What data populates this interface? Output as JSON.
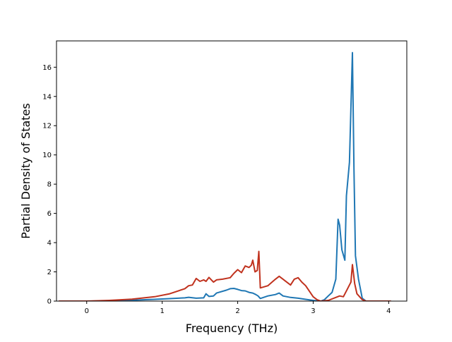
{
  "chart_data": {
    "type": "line",
    "title": "",
    "xlabel": "Frequency (THz)",
    "ylabel": "Partial Density of States",
    "xlim": [
      -0.4,
      4.24
    ],
    "ylim": [
      0,
      17.8
    ],
    "xticks": [
      0,
      1,
      2,
      3,
      4
    ],
    "yticks": [
      0,
      2,
      4,
      6,
      8,
      10,
      12,
      14,
      16
    ],
    "grid": false,
    "legend": "none",
    "series": [
      {
        "color": "#1f77b4",
        "points": [
          [
            -0.37,
            0
          ],
          [
            0.0,
            0.0
          ],
          [
            0.3,
            0.02
          ],
          [
            0.6,
            0.06
          ],
          [
            0.9,
            0.12
          ],
          [
            1.1,
            0.17
          ],
          [
            1.3,
            0.22
          ],
          [
            1.35,
            0.26
          ],
          [
            1.45,
            0.2
          ],
          [
            1.55,
            0.22
          ],
          [
            1.58,
            0.5
          ],
          [
            1.62,
            0.32
          ],
          [
            1.68,
            0.35
          ],
          [
            1.72,
            0.55
          ],
          [
            1.85,
            0.75
          ],
          [
            1.9,
            0.85
          ],
          [
            1.95,
            0.87
          ],
          [
            2.0,
            0.8
          ],
          [
            2.05,
            0.72
          ],
          [
            2.1,
            0.7
          ],
          [
            2.15,
            0.6
          ],
          [
            2.2,
            0.55
          ],
          [
            2.24,
            0.45
          ],
          [
            2.27,
            0.35
          ],
          [
            2.3,
            0.18
          ],
          [
            2.4,
            0.35
          ],
          [
            2.5,
            0.45
          ],
          [
            2.55,
            0.55
          ],
          [
            2.6,
            0.35
          ],
          [
            2.7,
            0.25
          ],
          [
            2.8,
            0.2
          ],
          [
            2.9,
            0.12
          ],
          [
            3.0,
            0.05
          ],
          [
            3.05,
            0.02
          ],
          [
            3.1,
            0.0
          ],
          [
            3.15,
            0.1
          ],
          [
            3.2,
            0.35
          ],
          [
            3.25,
            0.6
          ],
          [
            3.3,
            1.5
          ],
          [
            3.33,
            5.6
          ],
          [
            3.35,
            5.2
          ],
          [
            3.38,
            3.5
          ],
          [
            3.42,
            2.8
          ],
          [
            3.44,
            7.2
          ],
          [
            3.48,
            9.5
          ],
          [
            3.52,
            17.0
          ],
          [
            3.54,
            9.0
          ],
          [
            3.56,
            3.1
          ],
          [
            3.6,
            1.5
          ],
          [
            3.65,
            0.2
          ],
          [
            3.7,
            0.0
          ],
          [
            4.03,
            0
          ]
        ]
      },
      {
        "color": "#c0321e",
        "points": [
          [
            -0.37,
            0
          ],
          [
            0.0,
            0.0
          ],
          [
            0.3,
            0.05
          ],
          [
            0.6,
            0.13
          ],
          [
            0.9,
            0.3
          ],
          [
            1.1,
            0.5
          ],
          [
            1.3,
            0.85
          ],
          [
            1.35,
            1.05
          ],
          [
            1.4,
            1.1
          ],
          [
            1.45,
            1.55
          ],
          [
            1.5,
            1.35
          ],
          [
            1.55,
            1.45
          ],
          [
            1.58,
            1.35
          ],
          [
            1.62,
            1.62
          ],
          [
            1.68,
            1.3
          ],
          [
            1.72,
            1.45
          ],
          [
            1.8,
            1.5
          ],
          [
            1.9,
            1.6
          ],
          [
            1.95,
            1.9
          ],
          [
            2.0,
            2.15
          ],
          [
            2.05,
            1.95
          ],
          [
            2.1,
            2.4
          ],
          [
            2.15,
            2.3
          ],
          [
            2.18,
            2.45
          ],
          [
            2.2,
            2.8
          ],
          [
            2.23,
            2.0
          ],
          [
            2.26,
            2.1
          ],
          [
            2.28,
            3.4
          ],
          [
            2.3,
            0.9
          ],
          [
            2.4,
            1.05
          ],
          [
            2.5,
            1.5
          ],
          [
            2.55,
            1.7
          ],
          [
            2.6,
            1.5
          ],
          [
            2.7,
            1.1
          ],
          [
            2.75,
            1.5
          ],
          [
            2.8,
            1.6
          ],
          [
            2.85,
            1.3
          ],
          [
            2.9,
            1.05
          ],
          [
            3.0,
            0.3
          ],
          [
            3.05,
            0.1
          ],
          [
            3.1,
            0.0
          ],
          [
            3.2,
            0.05
          ],
          [
            3.3,
            0.25
          ],
          [
            3.35,
            0.35
          ],
          [
            3.4,
            0.3
          ],
          [
            3.45,
            0.8
          ],
          [
            3.5,
            1.3
          ],
          [
            3.52,
            2.5
          ],
          [
            3.55,
            1.2
          ],
          [
            3.58,
            0.5
          ],
          [
            3.65,
            0.1
          ],
          [
            3.7,
            0.0
          ],
          [
            4.03,
            0
          ]
        ]
      }
    ]
  }
}
